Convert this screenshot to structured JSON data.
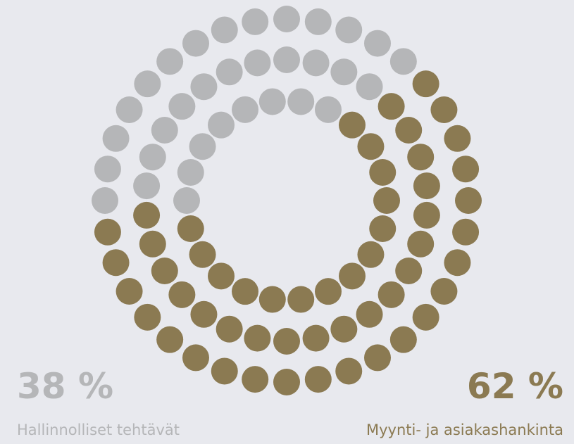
{
  "chart_data": {
    "type": "dot-ring",
    "categories": [
      "Hallinnolliset tehtävät",
      "Myynti- ja asiakashankinta"
    ],
    "values": [
      38,
      62
    ],
    "value_labels": [
      "38 %",
      "62 %"
    ],
    "colors": [
      "#b5b6b8",
      "#8b7a52"
    ]
  }
}
